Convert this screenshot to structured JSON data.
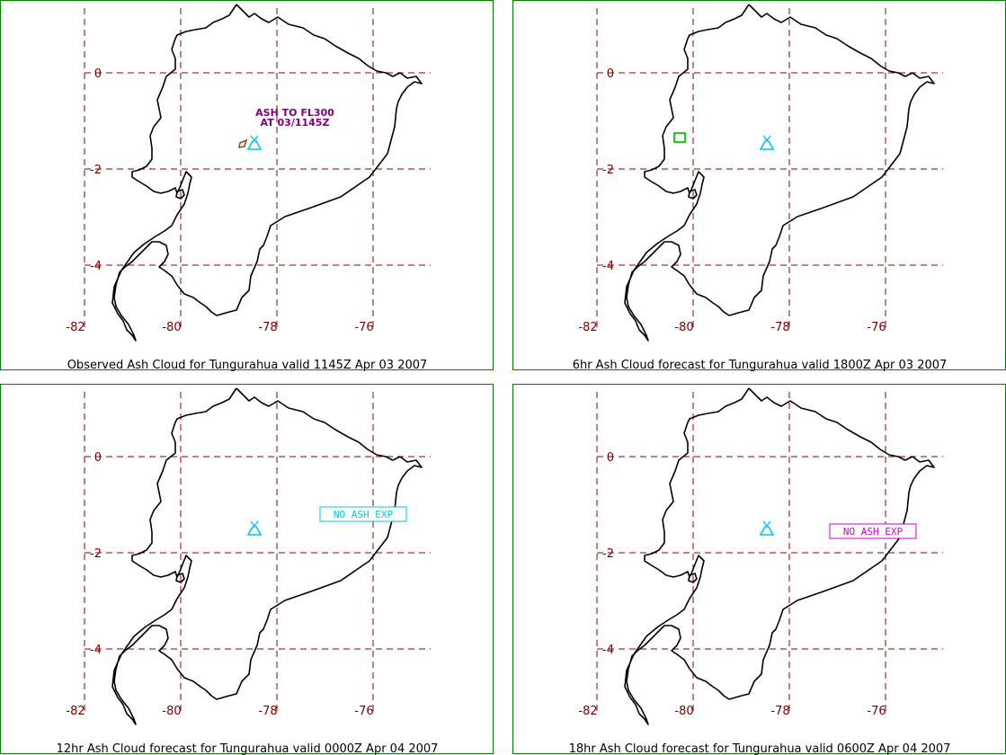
{
  "colors": {
    "border": "#008000",
    "grid": "#8b0000",
    "tick_label": "#7a0000",
    "coast": "#000000",
    "volcano": "#00c8e6",
    "annotation": "#800080",
    "observed_cloud": "#8b4513",
    "forecast_cloud": "#00cc00",
    "no_ash_cyan": "#00c8e6",
    "no_ash_magenta": "#cc00cc"
  },
  "icons": {
    "volcano": "volcano-icon"
  },
  "map": {
    "lon_ticks": [
      "-82",
      "-80",
      "-78",
      "-76"
    ],
    "lat_ticks": [
      "0",
      "-2",
      "-4"
    ],
    "lon_range": [
      -82.2,
      -74.3
    ],
    "lat_range": [
      1.35,
      -5.4
    ]
  },
  "panels": [
    {
      "caption": "Observed Ash Cloud for Tungurahua valid 1145Z Apr 03 2007",
      "annotation_line1": "ASH TO FL300",
      "annotation_line2": "AT 03/1145Z",
      "box_text": ""
    },
    {
      "caption": "6hr Ash Cloud forecast for Tungurahua valid 1800Z Apr 03 2007",
      "annotation_line1": "",
      "annotation_line2": "",
      "box_text": ""
    },
    {
      "caption": "12hr Ash Cloud forecast for Tungurahua valid 0000Z Apr 04 2007",
      "annotation_line1": "",
      "annotation_line2": "",
      "box_text": "NO ASH EXP"
    },
    {
      "caption": "18hr Ash Cloud forecast for Tungurahua valid 0600Z Apr 04 2007",
      "annotation_line1": "",
      "annotation_line2": "",
      "box_text": "NO ASH EXP"
    }
  ]
}
